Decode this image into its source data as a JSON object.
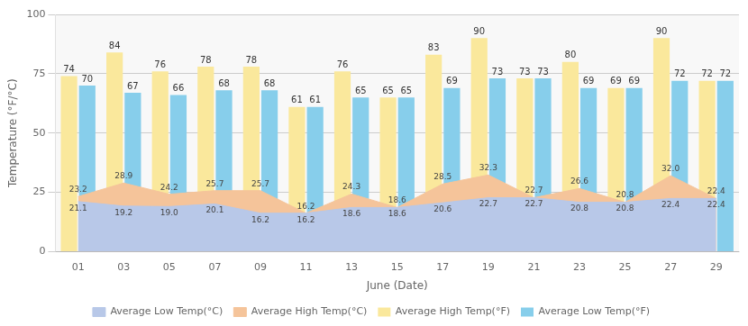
{
  "chart_data": {
    "type": "bar",
    "categories": [
      "01",
      "03",
      "05",
      "07",
      "09",
      "11",
      "13",
      "15",
      "17",
      "19",
      "21",
      "23",
      "25",
      "27",
      "29"
    ],
    "series": [
      {
        "name": "Average High Temp(°F)",
        "color": "#FAE89C",
        "values": [
          74,
          84,
          76,
          78,
          78,
          61,
          76,
          65,
          83,
          90,
          73,
          80,
          69,
          90,
          72
        ]
      },
      {
        "name": "Average Low Temp(°F)",
        "color": "#87CEEB",
        "values": [
          70,
          67,
          66,
          68,
          68,
          61,
          65,
          65,
          69,
          73,
          73,
          69,
          69,
          72,
          72
        ]
      },
      {
        "name": "Average High Temp(°C)",
        "type": "area",
        "color": "#F5C49A",
        "values": [
          23.2,
          28.9,
          24.2,
          25.7,
          25.7,
          16.2,
          24.3,
          18.6,
          28.5,
          32.3,
          22.7,
          26.6,
          20.8,
          32.0,
          22.4
        ],
        "value_labels": [
          "23.2",
          "28.9",
          "24.2",
          "25.7",
          "25.7",
          "16.2",
          "24.3",
          "18.6",
          "28.5",
          "32.3",
          "22.7",
          "26.6",
          "20.8",
          "32.0",
          "22.4"
        ]
      },
      {
        "name": "Average Low Temp(°C)",
        "type": "area",
        "color": "#B8C8E8",
        "values": [
          21.1,
          19.2,
          19.0,
          20.1,
          16.2,
          16.2,
          18.6,
          18.6,
          20.6,
          22.7,
          22.7,
          20.8,
          20.8,
          22.4,
          22.4
        ],
        "value_labels": [
          "21.1",
          "19.2",
          "19.0",
          "20.1",
          "16.2",
          "16.2",
          "18.6",
          "18.6",
          "20.6",
          "22.7",
          "22.7",
          "20.8",
          "20.8",
          "22.4",
          "22.4"
        ]
      }
    ],
    "xlabel": "June (Date)",
    "ylabel": "Temperature (°F/°C)",
    "ylim": [
      0,
      100
    ],
    "yticks": [
      0,
      25,
      50,
      75,
      100
    ],
    "grid": true,
    "legend": "bottom",
    "data_labels": true
  }
}
